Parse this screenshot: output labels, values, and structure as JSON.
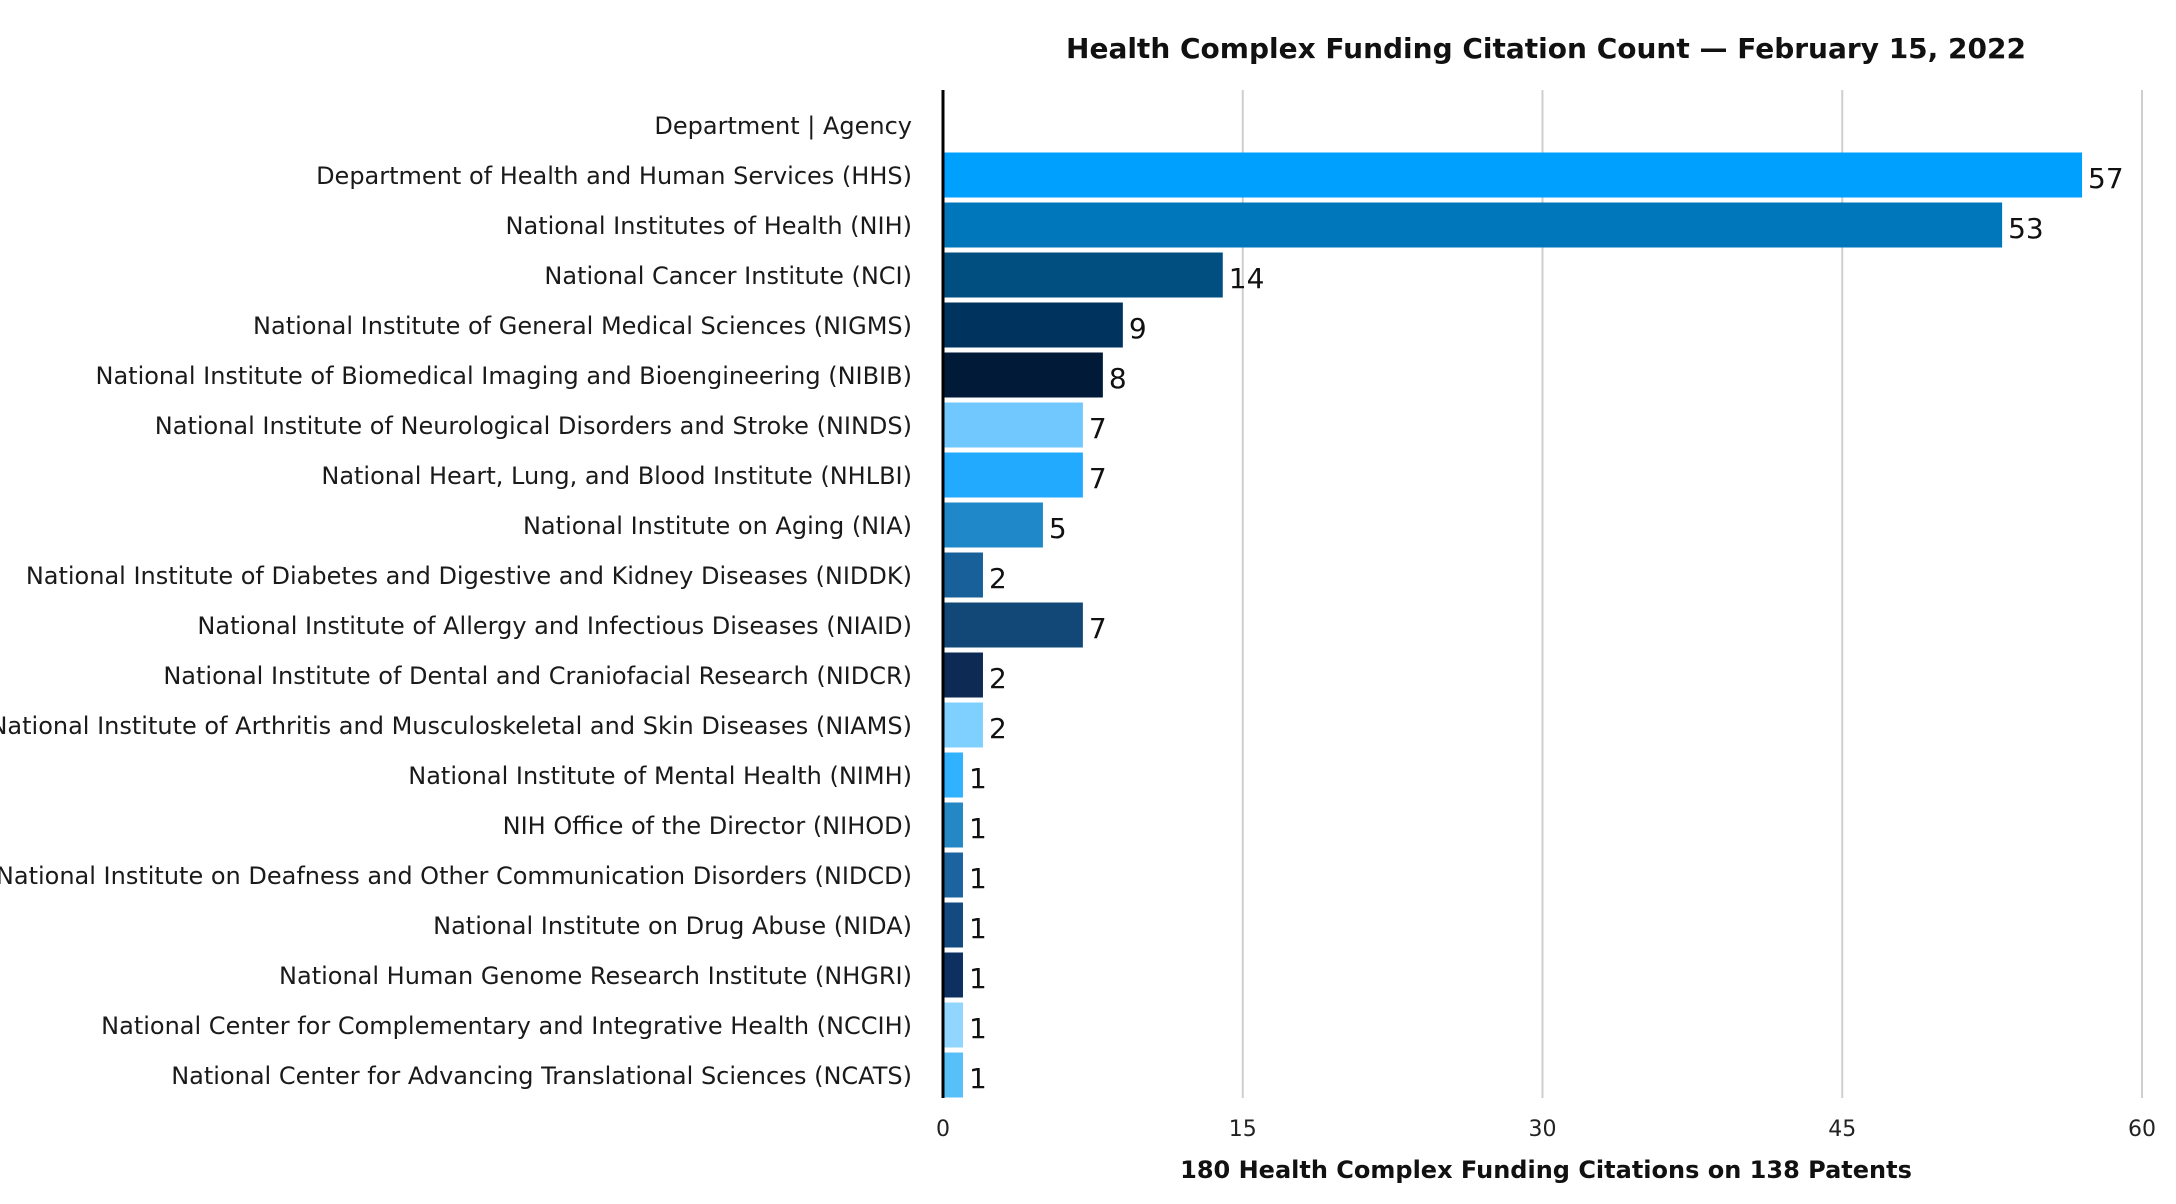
{
  "chart_data": {
    "type": "bar",
    "orientation": "horizontal",
    "title": "Health Complex Funding Citation Count — February 15, 2022",
    "xlabel": "180 Health Complex Funding Citations on 138 Patents",
    "ylabel": "Department | Agency",
    "xlim": [
      0,
      60
    ],
    "xticks": [
      0,
      15,
      30,
      45,
      60
    ],
    "grid": true,
    "categories": [
      "Department of Health and Human Services (HHS)",
      "National Institutes of Health (NIH)",
      "National Cancer Institute (NCI)",
      "National Institute of General Medical Sciences (NIGMS)",
      "National Institute of Biomedical Imaging and Bioengineering (NIBIB)",
      "National Institute of Neurological Disorders and Stroke (NINDS)",
      "National Heart, Lung, and Blood Institute (NHLBI)",
      "National Institute on Aging (NIA)",
      "National Institute of Diabetes and Digestive and Kidney Diseases (NIDDK)",
      "National Institute of Allergy and Infectious Diseases (NIAID)",
      "National Institute of Dental and Craniofacial Research (NIDCR)",
      "National Institute of Arthritis and Musculoskeletal and Skin Diseases (NIAMS)",
      "National Institute of Mental Health (NIMH)",
      "NIH Office of the Director (NIHOD)",
      "National Institute on Deafness and Other Communication Disorders (NIDCD)",
      "National Institute on Drug Abuse (NIDA)",
      "National Human Genome Research Institute (NHGRI)",
      "National Center for Complementary and Integrative Health (NCCIH)",
      "National Center for Advancing Translational Sciences (NCATS)"
    ],
    "values": [
      57,
      53,
      14,
      9,
      8,
      7,
      7,
      5,
      2,
      7,
      2,
      2,
      1,
      1,
      1,
      1,
      1,
      1,
      1
    ],
    "colors": [
      "#00a0ff",
      "#0077bb",
      "#004f80",
      "#00335e",
      "#001a38",
      "#70c8ff",
      "#22aaff",
      "#1e88c8",
      "#18609a",
      "#114878",
      "#0c2a54",
      "#80d0ff",
      "#30b2ff",
      "#2488c4",
      "#1c64a0",
      "#134a80",
      "#0e3060",
      "#90d6ff",
      "#58c0f8"
    ]
  }
}
